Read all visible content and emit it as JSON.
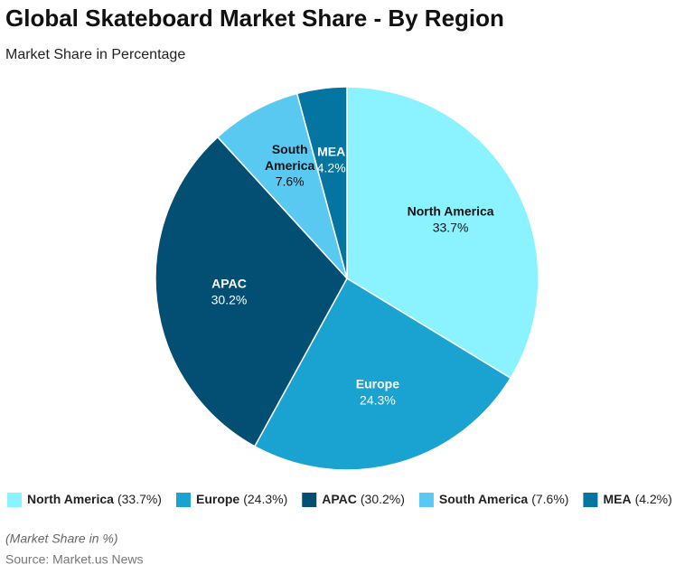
{
  "chart_data": {
    "type": "pie",
    "title": "Global Skateboard Market Share - By Region",
    "subtitle": "Market Share in Percentage",
    "categories": [
      "North America",
      "Europe",
      "APAC",
      "South America",
      "MEA"
    ],
    "values": [
      33.7,
      24.3,
      30.2,
      7.6,
      4.2
    ],
    "value_labels": [
      "33.7%",
      "24.3%",
      "30.2%",
      "7.6%",
      "4.2%"
    ],
    "legend_labels": [
      "(33.7%)",
      "(24.3%)",
      "(30.2%)",
      "(7.6%)",
      "(4.2%)"
    ],
    "colors": [
      "#8af3ff",
      "#1aa3d1",
      "#034e73",
      "#59c9f2",
      "#0474a0"
    ],
    "note": "(Market Share in %)",
    "source": "Source: Market.us News"
  }
}
